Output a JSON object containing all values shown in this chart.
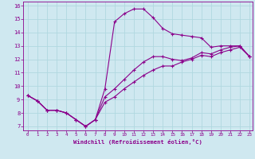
{
  "xlabel": "Windchill (Refroidissement éolien,°C)",
  "bg_color": "#cfe8f0",
  "line_color": "#8b008b",
  "grid_color": "#b0d8e0",
  "xlim": [
    -0.5,
    23.3
  ],
  "ylim": [
    6.7,
    16.3
  ],
  "xticks": [
    0,
    1,
    2,
    3,
    4,
    5,
    6,
    7,
    8,
    9,
    10,
    11,
    12,
    13,
    14,
    15,
    16,
    17,
    18,
    19,
    20,
    21,
    22,
    23
  ],
  "yticks": [
    7,
    8,
    9,
    10,
    11,
    12,
    13,
    14,
    15,
    16
  ],
  "line1_x": [
    0,
    1,
    2,
    3,
    4,
    5,
    6,
    7,
    8,
    9,
    10,
    11,
    12,
    13,
    14,
    15,
    16,
    17,
    18,
    19,
    20,
    21,
    22,
    23
  ],
  "line1_y": [
    9.3,
    8.9,
    8.2,
    8.2,
    8.0,
    7.5,
    7.0,
    7.5,
    9.8,
    14.8,
    15.4,
    15.75,
    15.75,
    15.1,
    14.3,
    13.9,
    13.8,
    13.7,
    13.6,
    12.9,
    13.0,
    13.0,
    13.0,
    12.2
  ],
  "line2_x": [
    0,
    1,
    2,
    3,
    4,
    5,
    6,
    7,
    8,
    9,
    10,
    11,
    12,
    13,
    14,
    15,
    16,
    17,
    18,
    19,
    20,
    21,
    22,
    23
  ],
  "line2_y": [
    9.3,
    8.9,
    8.2,
    8.2,
    8.0,
    7.5,
    7.0,
    7.5,
    9.2,
    9.8,
    10.5,
    11.2,
    11.8,
    12.2,
    12.2,
    12.0,
    11.9,
    12.1,
    12.5,
    12.4,
    12.7,
    12.9,
    13.0,
    12.2
  ],
  "line3_x": [
    0,
    1,
    2,
    3,
    4,
    5,
    6,
    7,
    8,
    9,
    10,
    11,
    12,
    13,
    14,
    15,
    16,
    17,
    18,
    19,
    20,
    21,
    22,
    23
  ],
  "line3_y": [
    9.3,
    8.9,
    8.2,
    8.2,
    8.0,
    7.5,
    7.0,
    7.5,
    8.8,
    9.2,
    9.8,
    10.3,
    10.8,
    11.2,
    11.5,
    11.5,
    11.8,
    12.0,
    12.3,
    12.2,
    12.5,
    12.7,
    12.9,
    12.2
  ]
}
